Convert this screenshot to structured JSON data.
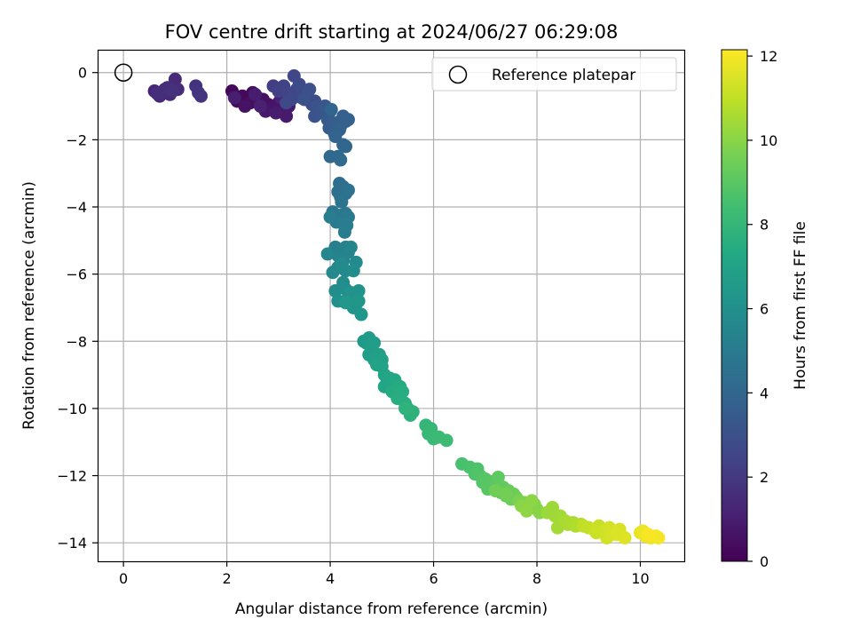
{
  "chart_data": {
    "type": "scatter",
    "title": "FOV centre drift starting at 2024/06/27 06:29:08",
    "xlabel": "Angular distance from reference (arcmin)",
    "ylabel": "Rotation from reference (arcmin)",
    "colorbar_label": "Hours from first FF file",
    "xlim": [
      -0.5,
      10.85
    ],
    "ylim": [
      -14.55,
      0.68
    ],
    "clim": [
      0,
      12.15
    ],
    "colormap": "viridis",
    "grid": true,
    "legend_position": "top-right",
    "x_ticks": [
      0,
      2,
      4,
      6,
      8,
      10
    ],
    "y_ticks": [
      0,
      -2,
      -4,
      -6,
      -8,
      -10,
      -12,
      -14
    ],
    "colorbar_ticks": [
      0,
      2,
      4,
      6,
      8,
      10,
      12
    ],
    "reference": {
      "name": "Reference platepar",
      "x": 0,
      "y": 0
    },
    "points": [
      [
        2.1,
        -0.55,
        0.2
      ],
      [
        2.3,
        -0.7,
        0.25
      ],
      [
        2.2,
        -0.85,
        0.3
      ],
      [
        2.5,
        -0.6,
        0.35
      ],
      [
        2.6,
        -0.75,
        0.4
      ],
      [
        2.45,
        -0.9,
        0.45
      ],
      [
        2.7,
        -0.8,
        0.5
      ],
      [
        2.8,
        -0.95,
        0.55
      ],
      [
        2.35,
        -1.0,
        0.6
      ],
      [
        2.9,
        -1.05,
        0.65
      ],
      [
        3.0,
        -0.9,
        0.7
      ],
      [
        3.1,
        -1.1,
        0.75
      ],
      [
        2.75,
        -1.15,
        0.8
      ],
      [
        3.2,
        -1.0,
        0.85
      ],
      [
        3.15,
        -1.3,
        0.9
      ],
      [
        2.95,
        -1.2,
        0.95
      ],
      [
        2.55,
        -0.65,
        1.0
      ],
      [
        2.15,
        -0.75,
        1.05
      ],
      [
        2.65,
        -1.0,
        1.1
      ],
      [
        3.05,
        -0.75,
        1.15
      ],
      [
        0.6,
        -0.55,
        1.2
      ],
      [
        0.7,
        -0.7,
        1.3
      ],
      [
        0.8,
        -0.5,
        1.35
      ],
      [
        0.9,
        -0.65,
        1.4
      ],
      [
        1.0,
        -0.2,
        1.45
      ],
      [
        1.05,
        -0.5,
        1.5
      ],
      [
        0.75,
        -0.6,
        1.55
      ],
      [
        0.85,
        -0.45,
        1.6
      ],
      [
        0.65,
        -0.62,
        1.65
      ],
      [
        0.95,
        -0.55,
        1.7
      ],
      [
        1.4,
        -0.4,
        1.75
      ],
      [
        1.5,
        -0.7,
        1.8
      ],
      [
        1.45,
        -0.6,
        1.85
      ],
      [
        2.9,
        -0.4,
        2.2
      ],
      [
        3.0,
        -0.55,
        2.3
      ],
      [
        3.1,
        -0.4,
        2.4
      ],
      [
        3.2,
        -0.65,
        2.45
      ],
      [
        3.3,
        -0.1,
        2.5
      ],
      [
        3.35,
        -0.5,
        2.55
      ],
      [
        3.25,
        -0.8,
        2.6
      ],
      [
        3.15,
        -0.9,
        2.65
      ],
      [
        3.45,
        -0.75,
        2.7
      ],
      [
        3.4,
        -0.35,
        2.75
      ],
      [
        3.55,
        -0.8,
        2.8
      ],
      [
        3.65,
        -0.95,
        2.85
      ],
      [
        3.7,
        -0.85,
        2.9
      ],
      [
        3.6,
        -0.5,
        2.95
      ],
      [
        3.5,
        -0.8,
        3.0
      ],
      [
        3.75,
        -1.0,
        3.05
      ],
      [
        3.8,
        -1.15,
        3.1
      ],
      [
        3.7,
        -1.3,
        3.15
      ],
      [
        3.85,
        -1.2,
        3.2
      ],
      [
        3.9,
        -1.0,
        3.3
      ],
      [
        4.0,
        -1.15,
        3.35
      ],
      [
        3.95,
        -1.4,
        3.4
      ],
      [
        4.05,
        -1.5,
        3.45
      ],
      [
        3.98,
        -1.65,
        3.5
      ],
      [
        4.08,
        -1.8,
        3.55
      ],
      [
        4.12,
        -1.5,
        3.6
      ],
      [
        4.2,
        -1.6,
        3.65
      ],
      [
        4.25,
        -1.3,
        3.7
      ],
      [
        4.3,
        -1.45,
        3.75
      ],
      [
        4.35,
        -1.4,
        3.8
      ],
      [
        4.18,
        -1.7,
        3.85
      ],
      [
        4.1,
        -1.9,
        3.9
      ],
      [
        4.02,
        -1.1,
        3.95
      ],
      [
        4.25,
        -2.15,
        4.0
      ],
      [
        4.3,
        -2.2,
        4.05
      ],
      [
        4.15,
        -2.5,
        4.1
      ],
      [
        4.0,
        -2.5,
        4.15
      ],
      [
        4.2,
        -2.6,
        4.2
      ],
      [
        4.18,
        -3.3,
        4.3
      ],
      [
        4.25,
        -3.4,
        4.35
      ],
      [
        4.15,
        -3.55,
        4.4
      ],
      [
        4.3,
        -3.6,
        4.45
      ],
      [
        4.2,
        -3.7,
        4.5
      ],
      [
        4.35,
        -3.5,
        4.55
      ],
      [
        4.22,
        -3.85,
        4.6
      ],
      [
        4.05,
        -4.15,
        4.7
      ],
      [
        4.1,
        -4.3,
        4.75
      ],
      [
        4.2,
        -4.25,
        4.8
      ],
      [
        4.3,
        -4.2,
        4.85
      ],
      [
        4.35,
        -4.3,
        4.9
      ],
      [
        4.12,
        -4.45,
        4.95
      ],
      [
        4.25,
        -4.5,
        5.0
      ],
      [
        4.28,
        -4.75,
        5.05
      ],
      [
        4.0,
        -4.3,
        5.1
      ],
      [
        4.32,
        -4.55,
        5.15
      ],
      [
        4.1,
        -5.2,
        5.2
      ],
      [
        4.2,
        -5.3,
        5.25
      ],
      [
        4.3,
        -5.2,
        5.3
      ],
      [
        4.15,
        -5.45,
        5.35
      ],
      [
        4.35,
        -5.35,
        5.4
      ],
      [
        4.25,
        -5.6,
        5.45
      ],
      [
        4.4,
        -5.2,
        5.5
      ],
      [
        3.95,
        -5.4,
        5.55
      ],
      [
        4.15,
        -5.8,
        5.6
      ],
      [
        4.05,
        -5.95,
        5.65
      ],
      [
        4.3,
        -5.9,
        5.7
      ],
      [
        4.5,
        -5.65,
        5.75
      ],
      [
        4.22,
        -5.7,
        5.8
      ],
      [
        4.45,
        -5.9,
        5.85
      ],
      [
        4.25,
        -6.25,
        5.9
      ],
      [
        4.1,
        -6.5,
        5.95
      ],
      [
        4.3,
        -6.45,
        6.0
      ],
      [
        4.15,
        -6.8,
        6.05
      ],
      [
        4.35,
        -6.7,
        6.1
      ],
      [
        4.4,
        -6.55,
        6.15
      ],
      [
        4.55,
        -6.5,
        6.2
      ],
      [
        4.5,
        -6.9,
        6.25
      ],
      [
        4.45,
        -7.0,
        6.3
      ],
      [
        4.6,
        -7.2,
        6.35
      ],
      [
        4.55,
        -6.8,
        6.4
      ],
      [
        4.3,
        -6.85,
        6.45
      ],
      [
        4.65,
        -8.0,
        6.5
      ],
      [
        4.75,
        -7.9,
        6.55
      ],
      [
        4.7,
        -8.05,
        6.6
      ],
      [
        4.85,
        -8.05,
        6.65
      ],
      [
        4.8,
        -8.15,
        6.7
      ],
      [
        4.75,
        -8.4,
        6.75
      ],
      [
        4.85,
        -8.55,
        6.8
      ],
      [
        4.95,
        -8.4,
        6.85
      ],
      [
        5.0,
        -8.55,
        6.9
      ],
      [
        4.9,
        -8.7,
        6.95
      ],
      [
        5.0,
        -8.75,
        7.0
      ],
      [
        5.05,
        -9.0,
        7.05
      ],
      [
        5.1,
        -9.2,
        7.1
      ],
      [
        5.05,
        -9.35,
        7.15
      ],
      [
        5.15,
        -9.1,
        7.2
      ],
      [
        5.2,
        -9.3,
        7.25
      ],
      [
        5.25,
        -9.15,
        7.3
      ],
      [
        5.3,
        -9.4,
        7.35
      ],
      [
        5.2,
        -9.5,
        7.4
      ],
      [
        5.35,
        -9.35,
        7.45
      ],
      [
        5.4,
        -9.5,
        7.5
      ],
      [
        5.3,
        -9.7,
        7.55
      ],
      [
        5.45,
        -9.85,
        7.6
      ],
      [
        5.5,
        -10.0,
        7.65
      ],
      [
        5.55,
        -10.2,
        7.7
      ],
      [
        5.6,
        -10.1,
        7.75
      ],
      [
        5.45,
        -10.0,
        7.8
      ],
      [
        5.85,
        -10.5,
        8.0
      ],
      [
        5.95,
        -10.6,
        8.05
      ],
      [
        5.9,
        -10.75,
        8.1
      ],
      [
        6.0,
        -10.9,
        8.15
      ],
      [
        6.1,
        -10.85,
        8.2
      ],
      [
        6.25,
        -10.95,
        8.25
      ],
      [
        6.55,
        -11.65,
        8.6
      ],
      [
        6.7,
        -11.75,
        8.65
      ],
      [
        6.85,
        -11.8,
        8.7
      ],
      [
        6.8,
        -11.95,
        8.75
      ],
      [
        6.9,
        -12.0,
        8.8
      ],
      [
        6.95,
        -12.2,
        8.85
      ],
      [
        7.0,
        -12.1,
        8.9
      ],
      [
        7.1,
        -12.2,
        8.95
      ],
      [
        7.05,
        -12.4,
        9.0
      ],
      [
        7.2,
        -12.3,
        9.05
      ],
      [
        7.25,
        -12.05,
        9.1
      ],
      [
        7.3,
        -12.5,
        9.15
      ],
      [
        7.35,
        -12.35,
        9.2
      ],
      [
        7.4,
        -12.6,
        9.25
      ],
      [
        7.45,
        -12.45,
        9.3
      ],
      [
        7.5,
        -12.7,
        9.35
      ],
      [
        7.55,
        -12.55,
        9.4
      ],
      [
        7.6,
        -12.65,
        9.45
      ],
      [
        7.2,
        -12.45,
        9.5
      ],
      [
        7.4,
        -12.55,
        9.55
      ],
      [
        7.65,
        -12.75,
        9.7
      ],
      [
        7.75,
        -12.8,
        9.75
      ],
      [
        7.85,
        -12.95,
        9.8
      ],
      [
        7.95,
        -12.85,
        9.85
      ],
      [
        8.0,
        -13.0,
        9.9
      ],
      [
        8.05,
        -13.1,
        9.95
      ],
      [
        7.7,
        -12.9,
        10.0
      ],
      [
        7.9,
        -12.75,
        10.05
      ],
      [
        7.8,
        -13.05,
        10.1
      ],
      [
        8.2,
        -13.1,
        10.3
      ],
      [
        8.3,
        -12.95,
        10.35
      ],
      [
        8.35,
        -13.2,
        10.4
      ],
      [
        8.45,
        -13.2,
        10.45
      ],
      [
        8.4,
        -13.55,
        10.5
      ],
      [
        8.55,
        -13.35,
        10.55
      ],
      [
        8.6,
        -13.45,
        10.6
      ],
      [
        8.7,
        -13.4,
        10.65
      ],
      [
        8.75,
        -13.5,
        10.7
      ],
      [
        8.85,
        -13.45,
        10.75
      ],
      [
        8.9,
        -13.5,
        11.0
      ],
      [
        9.0,
        -13.55,
        11.05
      ],
      [
        9.1,
        -13.6,
        11.1
      ],
      [
        9.2,
        -13.5,
        11.15
      ],
      [
        9.15,
        -13.7,
        11.2
      ],
      [
        9.3,
        -13.65,
        11.25
      ],
      [
        9.35,
        -13.85,
        11.3
      ],
      [
        9.4,
        -13.55,
        11.35
      ],
      [
        9.45,
        -13.75,
        11.4
      ],
      [
        9.6,
        -13.6,
        11.45
      ],
      [
        9.55,
        -13.75,
        11.5
      ],
      [
        9.7,
        -13.85,
        11.55
      ],
      [
        10.0,
        -13.7,
        11.75
      ],
      [
        10.05,
        -13.65,
        11.8
      ],
      [
        10.1,
        -13.8,
        11.85
      ],
      [
        10.2,
        -13.85,
        11.9
      ],
      [
        10.3,
        -13.8,
        11.95
      ],
      [
        10.35,
        -13.85,
        12.0
      ],
      [
        10.15,
        -13.75,
        12.05
      ]
    ]
  }
}
